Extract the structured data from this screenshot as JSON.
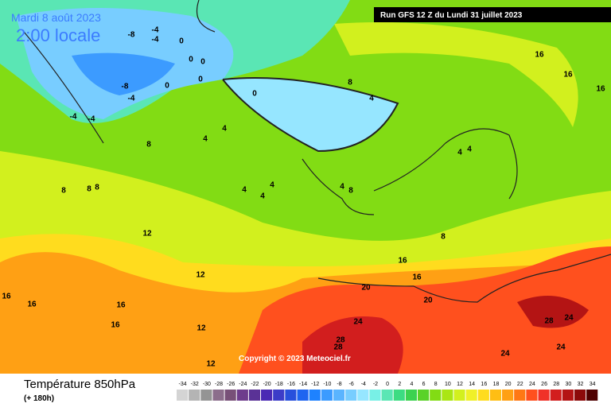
{
  "header": {
    "date": "Mardi 8 août 2023",
    "time": "2:00 locale",
    "run": "Run GFS 12 Z du Lundi 31 juillet 2023",
    "copyright": "Copyright © 2023 Meteociel.fr"
  },
  "legend": {
    "title": "Température 850hPa",
    "lead": "(+ 180h)",
    "ticks": [
      -34,
      -32,
      -30,
      -28,
      -26,
      -24,
      -22,
      -20,
      -18,
      -16,
      -14,
      -12,
      -10,
      -8,
      -6,
      -4,
      -2,
      0,
      2,
      4,
      6,
      8,
      10,
      12,
      14,
      16,
      18,
      20,
      22,
      24,
      26,
      28,
      30,
      32,
      34
    ],
    "colors": [
      "#d4d4d4",
      "#b4b4b4",
      "#949494",
      "#8c6e8c",
      "#785078",
      "#6e3c8c",
      "#5a3296",
      "#4b2ab4",
      "#3c3cc8",
      "#2850dc",
      "#1e64f0",
      "#1e82ff",
      "#3c9bff",
      "#5ab4ff",
      "#78cdff",
      "#96e6ff",
      "#78f0e6",
      "#5ae6b4",
      "#3cdc82",
      "#3cd250",
      "#5ad228",
      "#82dc14",
      "#aae614",
      "#d2f01e",
      "#f0f028",
      "#ffdc1e",
      "#ffbe14",
      "#ffa014",
      "#ff7814",
      "#ff501e",
      "#f03228",
      "#d21e1e",
      "#b41414",
      "#8c0a0a",
      "#500000"
    ]
  },
  "map": {
    "contour_labels": [
      -8,
      -4,
      -4,
      0,
      0,
      0,
      -8,
      -4,
      0,
      0,
      -4,
      -4,
      0,
      8,
      4,
      4,
      4,
      8,
      4,
      4,
      4,
      8,
      8,
      8,
      12,
      12,
      16,
      16,
      16,
      16,
      12,
      12,
      20,
      20,
      24,
      28,
      28,
      24,
      24,
      28,
      24,
      16,
      16,
      8,
      4,
      4,
      4,
      8,
      16,
      16,
      16
    ]
  }
}
